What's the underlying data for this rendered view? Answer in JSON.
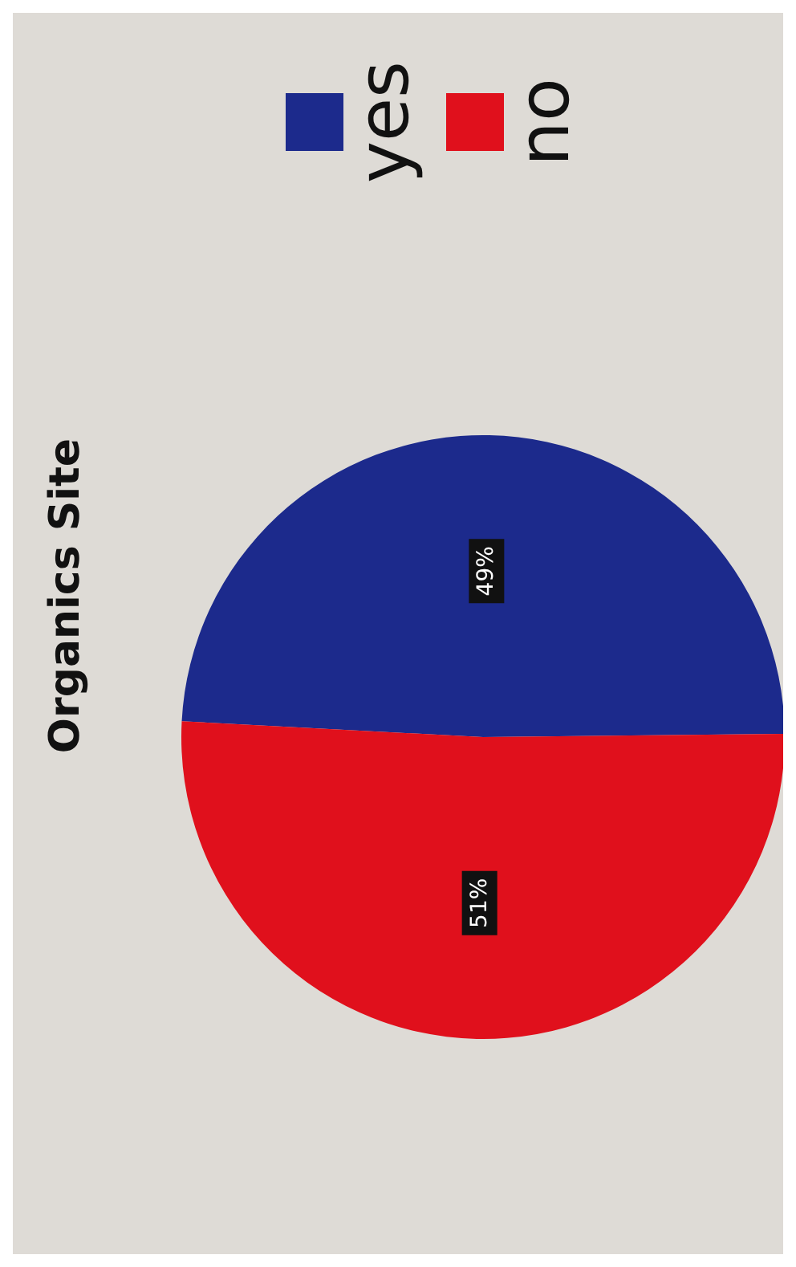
{
  "chart_data": {
    "type": "pie",
    "title": "Organics Site",
    "categories": [
      "yes",
      "no"
    ],
    "values": [
      49,
      51
    ],
    "colors": [
      "#1c2a8c",
      "#e0101c"
    ],
    "value_labels": [
      "49%",
      "51%"
    ],
    "legend": "top"
  }
}
